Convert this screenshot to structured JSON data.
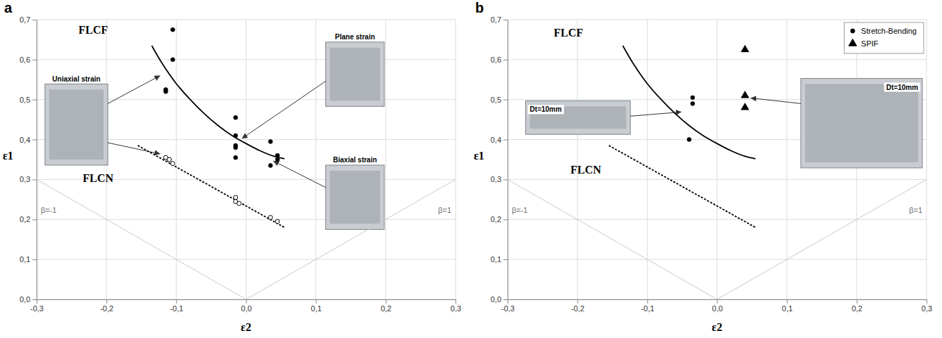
{
  "chart_data": [
    {
      "type": "scatter",
      "panel_label": "a",
      "xlabel": "ε2",
      "ylabel": "ε1",
      "xlim": [
        -0.3,
        0.3
      ],
      "xticks": [
        {
          "value": -0.3,
          "label": "-0,3"
        },
        {
          "value": -0.2,
          "label": "-0,2"
        },
        {
          "value": -0.1,
          "label": "-0,1"
        },
        {
          "value": 0,
          "label": "0,0"
        },
        {
          "value": 0.1,
          "label": "0,1"
        },
        {
          "value": 0.2,
          "label": "0,2"
        },
        {
          "value": 0.3,
          "label": "0,3"
        }
      ],
      "ylim": [
        0,
        0.7
      ],
      "yticks": [
        {
          "value": 0,
          "label": "0,0"
        },
        {
          "value": 0.1,
          "label": "0,1"
        },
        {
          "value": 0.2,
          "label": "0,2"
        },
        {
          "value": 0.3,
          "label": "0,3"
        },
        {
          "value": 0.4,
          "label": "0,4"
        },
        {
          "value": 0.5,
          "label": "0,5"
        },
        {
          "value": 0.6,
          "label": "0,6"
        },
        {
          "value": 0.7,
          "label": "0,7"
        }
      ],
      "grid": true,
      "series": [
        {
          "name": "FLCF",
          "type": "line",
          "color": "#000000",
          "line_style": "solid",
          "marker": "none",
          "x": [
            -0.135,
            -0.12,
            -0.1,
            -0.08,
            -0.06,
            -0.04,
            -0.02,
            0,
            0.02,
            0.04,
            0.055
          ],
          "values": [
            0.635,
            0.59,
            0.54,
            0.5,
            0.465,
            0.435,
            0.41,
            0.39,
            0.372,
            0.358,
            0.352
          ]
        },
        {
          "name": "FLCN",
          "type": "line",
          "color": "#000000",
          "line_style": "dashed",
          "marker": "none",
          "x": [
            -0.155,
            0.055
          ],
          "values": [
            0.385,
            0.18
          ]
        },
        {
          "name": "β=-1",
          "type": "line",
          "color": "#c8c8c8",
          "line_style": "solid",
          "marker": "none",
          "x": [
            -0.3,
            0
          ],
          "values": [
            0.3,
            0
          ]
        },
        {
          "name": "β=1",
          "type": "line",
          "color": "#c8c8c8",
          "line_style": "solid",
          "marker": "none",
          "x": [
            0,
            0.3
          ],
          "values": [
            0,
            0.3
          ]
        },
        {
          "type": "scatter",
          "color": "#000000",
          "marker": "circle",
          "x": [
            -0.105,
            -0.105,
            -0.115,
            -0.115,
            -0.015,
            -0.015,
            -0.015,
            -0.015,
            -0.015,
            0.035,
            0.035,
            0.045,
            0.045
          ],
          "values": [
            0.675,
            0.6,
            0.525,
            0.52,
            0.455,
            0.41,
            0.385,
            0.38,
            0.355,
            0.395,
            0.335,
            0.36,
            0.35
          ]
        },
        {
          "type": "scatter",
          "color": "#000000",
          "marker": "open-circle",
          "x": [
            -0.115,
            -0.11,
            -0.105,
            -0.015,
            -0.015,
            -0.01,
            0.035,
            0.045
          ],
          "values": [
            0.355,
            0.35,
            0.34,
            0.255,
            0.245,
            0.24,
            0.205,
            0.195
          ]
        }
      ],
      "annotations": [
        "Uniaxial strain",
        "Plane strain",
        "Biaxial strain"
      ]
    },
    {
      "type": "scatter",
      "panel_label": "b",
      "xlabel": "ε2",
      "ylabel": "ε1",
      "xlim": [
        -0.3,
        0.3
      ],
      "xticks": [
        {
          "value": -0.3,
          "label": "-0,3"
        },
        {
          "value": -0.2,
          "label": "-0,2"
        },
        {
          "value": -0.1,
          "label": "-0,1"
        },
        {
          "value": 0,
          "label": "0,0"
        },
        {
          "value": 0.1,
          "label": "0,1"
        },
        {
          "value": 0.2,
          "label": "0,2"
        },
        {
          "value": 0.3,
          "label": "0,3"
        }
      ],
      "ylim": [
        0,
        0.7
      ],
      "yticks": [
        {
          "value": 0,
          "label": "0,0"
        },
        {
          "value": 0.1,
          "label": "0,1"
        },
        {
          "value": 0.2,
          "label": "0,2"
        },
        {
          "value": 0.3,
          "label": "0,3"
        },
        {
          "value": 0.4,
          "label": "0,4"
        },
        {
          "value": 0.5,
          "label": "0,5"
        },
        {
          "value": 0.6,
          "label": "0,6"
        },
        {
          "value": 0.7,
          "label": "0,7"
        }
      ],
      "grid": true,
      "legend": "top-right",
      "series": [
        {
          "name": "FLCF",
          "type": "line",
          "color": "#000000",
          "line_style": "solid",
          "marker": "none",
          "x": [
            -0.135,
            -0.12,
            -0.1,
            -0.08,
            -0.06,
            -0.04,
            -0.02,
            0,
            0.02,
            0.04,
            0.055
          ],
          "values": [
            0.635,
            0.59,
            0.54,
            0.5,
            0.465,
            0.435,
            0.41,
            0.39,
            0.372,
            0.358,
            0.352
          ]
        },
        {
          "name": "FLCN",
          "type": "line",
          "color": "#000000",
          "line_style": "dashed",
          "marker": "none",
          "x": [
            -0.155,
            0.055
          ],
          "values": [
            0.385,
            0.18
          ]
        },
        {
          "name": "β=-1",
          "type": "line",
          "color": "#c8c8c8",
          "line_style": "solid",
          "marker": "none",
          "x": [
            -0.3,
            0
          ],
          "values": [
            0.3,
            0
          ]
        },
        {
          "name": "β=1",
          "type": "line",
          "color": "#c8c8c8",
          "line_style": "solid",
          "marker": "none",
          "x": [
            0,
            0.3
          ],
          "values": [
            0,
            0.3
          ]
        },
        {
          "name": "Stretch-Bending",
          "type": "scatter",
          "color": "#000000",
          "marker": "circle",
          "x": [
            -0.035,
            -0.035,
            -0.04
          ],
          "values": [
            0.505,
            0.49,
            0.4
          ]
        },
        {
          "name": "SPIF",
          "type": "scatter",
          "color": "#000000",
          "marker": "triangle",
          "x": [
            0.04,
            0.04,
            0.04
          ],
          "values": [
            0.625,
            0.51,
            0.48
          ]
        }
      ],
      "annotations": [
        "Dt=10mm",
        "Dt=10mm"
      ]
    }
  ]
}
